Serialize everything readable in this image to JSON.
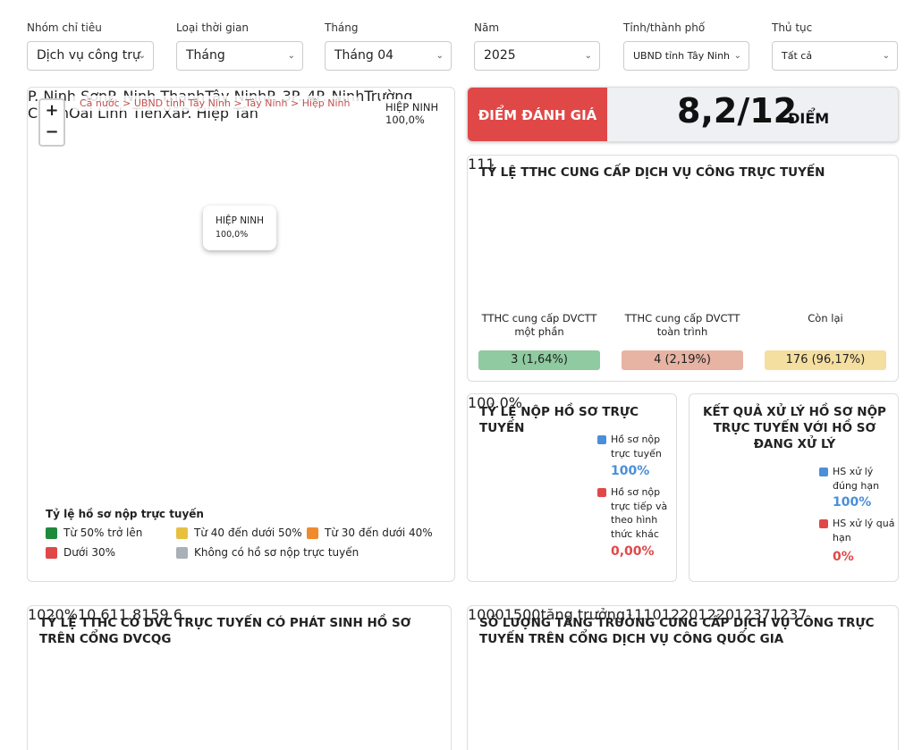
{
  "filters": [
    {
      "label": "Nhóm chỉ tiêu",
      "value": "Dịch vụ công trự"
    },
    {
      "label": "Loại thời gian",
      "value": "Tháng"
    },
    {
      "label": "Tháng",
      "value": "Tháng 04"
    },
    {
      "label": "Năm",
      "value": "2025"
    },
    {
      "label": "Tỉnh/thành phố",
      "value": "UBND tỉnh Tây Ninh"
    },
    {
      "label": "Thủ tục",
      "value": "Tất cả"
    }
  ],
  "map": {
    "breadcrumb": "Cả nước > UBND tỉnh Tây Ninh > Tây Ninh > Hiệp Ninh",
    "selected_name": "HIỆP NINH",
    "selected_value": "100,0%",
    "popup_name": "HIỆP NINH",
    "popup_value": "100,0%",
    "places": [
      "P. Ninh Sơn",
      "P. Ninh Thạnh",
      "Tây Ninh",
      "P. 3",
      "P. 4",
      "P. Ninh",
      "Trường Chinh",
      "Oai Linh Tiên",
      "Xã",
      "P. Hiệp Tân"
    ],
    "legend": {
      "title": "Tỷ lệ hồ sơ nộp trực tuyến",
      "items": [
        {
          "label": "Từ 50% trở lên",
          "color": "#1e8a3c"
        },
        {
          "label": "Từ 40 đến dưới 50%",
          "color": "#e8c040"
        },
        {
          "label": "Từ 30 đến dưới 40%",
          "color": "#ef8a2e"
        },
        {
          "label": "Dưới 30%",
          "color": "#e04848"
        },
        {
          "label": "Không có hồ sơ nộp trực tuyến",
          "color": "#a8b0b8"
        }
      ]
    }
  },
  "score": {
    "label": "ĐIỂM ĐÁNH GIÁ",
    "value": "8,2/12",
    "unit": "ĐIỂM"
  },
  "gauges": {
    "title": "TỶ LỆ TTHC CUNG CẤP DỊCH VỤ CÔNG TRỰC TUYẾN",
    "items": [
      {
        "name": "TTHC cung cấp DVCTT một phần",
        "count": 3,
        "percent": 1.64,
        "value_label": "3 (1,64%)",
        "max_label": "1",
        "color": "#4a8fd8",
        "badge": "#8fcaa0"
      },
      {
        "name": "TTHC cung cấp DVCTT toàn trình",
        "count": 4,
        "percent": 2.19,
        "value_label": "4 (2,19%)",
        "max_label": "1",
        "color": "#3ab0b8",
        "badge": "#e7b3a3"
      },
      {
        "name": "Còn lại",
        "count": 176,
        "percent": 96.17,
        "value_label": "176 (96,17%)",
        "max_label": "1",
        "color": "#e04848",
        "badge": "#f5dfa0"
      }
    ]
  },
  "donut_online": {
    "type": "donut",
    "title": "TỶ LỆ NỘP HỒ SƠ TRỰC TUYẾN",
    "center_label": "100.0%",
    "series": [
      {
        "name": "Hồ sơ nộp trực tuyến",
        "color": "#4a8fd8",
        "value": 100,
        "value_label": "100%"
      },
      {
        "name": "Hồ sơ nộp trực tiếp và theo hình thức khác",
        "color": "#e04848",
        "value": 0,
        "value_label": "0,00%"
      }
    ]
  },
  "donut_result": {
    "type": "donut",
    "title": "KẾT QUẢ XỬ LÝ HỒ SƠ NỘP TRỰC TUYẾN VỚI HỒ SƠ ĐANG XỬ LÝ",
    "series": [
      {
        "name": "HS xử lý đúng hạn",
        "color": "#4a8fd8",
        "value": 100,
        "value_label": "100%"
      },
      {
        "name": "HS xử lý quá hạn",
        "color": "#e04848",
        "value": 0,
        "value_label": "0%"
      }
    ]
  },
  "chart_left": {
    "type": "bar",
    "title": "TỶ LỆ TTHC CÓ DVC TRỰC TUYẾN CÓ PHÁT SINH HỒ SƠ TRÊN CỔNG DVCQG",
    "ylabel": "%",
    "categories": [
      null,
      null,
      null,
      null
    ],
    "values": [
      10.6,
      11.8,
      15,
      9.6
    ],
    "color": "#d9704a",
    "ylim": [
      0,
      20
    ],
    "yticks": [
      10,
      20
    ],
    "grid": true
  },
  "chart_right": {
    "type": "bar",
    "title": "SỐ LƯỢNG TĂNG TRƯỞNG CUNG CẤP DỊCH VỤ CÔNG TRỰC TUYẾN TRÊN CỔNG DỊCH VỤ CÔNG QUỐC GIA",
    "ylabel": "tăng trưởng",
    "categories": [
      null,
      null,
      null,
      null,
      null
    ],
    "values": [
      1110,
      1220,
      1220,
      1237,
      1237
    ],
    "color": "#4a8fd8",
    "ylim": [
      0,
      1500
    ],
    "yticks": [
      1000,
      1500
    ],
    "grid": true
  }
}
